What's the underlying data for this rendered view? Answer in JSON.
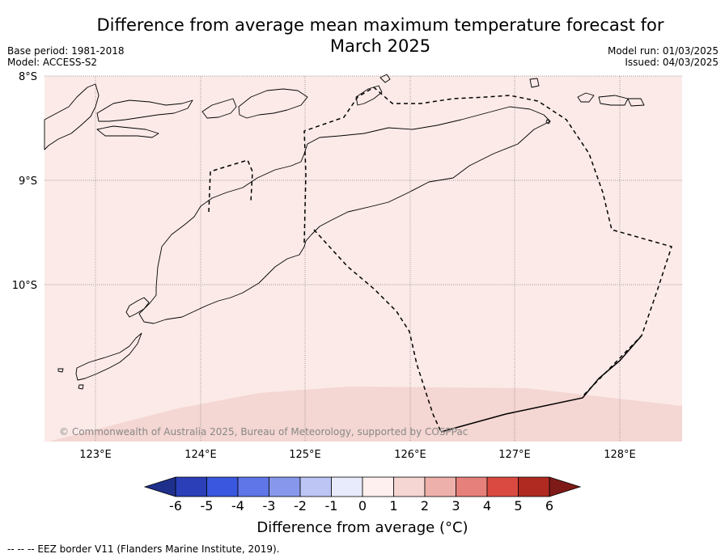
{
  "title_line1": "Difference from average mean maximum temperature forecast for",
  "title_line2": "March 2025",
  "meta_left": [
    "Base period: 1981-2018",
    "Model: ACCESS-S2"
  ],
  "meta_right": [
    "Model run: 01/03/2025",
    "Issued: 04/03/2025"
  ],
  "lat_labels": [
    "8°S",
    "9°S",
    "10°S"
  ],
  "lon_labels": [
    "123°E",
    "124°E",
    "125°E",
    "126°E",
    "127°E",
    "128°E"
  ],
  "copyright": "© Commonwealth of Australia 2025, Bureau of Meteorology, supported by COSPPac",
  "colorbar": {
    "ticks": [
      "-6",
      "-5",
      "-4",
      "-3",
      "-2",
      "-1",
      "0",
      "1",
      "2",
      "3",
      "4",
      "5",
      "6"
    ],
    "colors": [
      "#1f2f8c",
      "#2a3fb8",
      "#3a57e0",
      "#5f76e8",
      "#8798ec",
      "#bcc5f4",
      "#e8ebfb",
      "#fdf0ee",
      "#f5d6d2",
      "#eeb0aa",
      "#e6807a",
      "#db4a40",
      "#b02a22",
      "#7e1a17"
    ],
    "label": "Difference from average (°C)"
  },
  "map_colors": {
    "background": "#fbeae8",
    "warm_band": "#f4d6d2",
    "coastline": "#000000",
    "eez": "#000000",
    "grid": "#7a7a7a"
  },
  "footnote": "-- -- -- EEZ border V11 (Flanders Marine Institute, 2019)."
}
